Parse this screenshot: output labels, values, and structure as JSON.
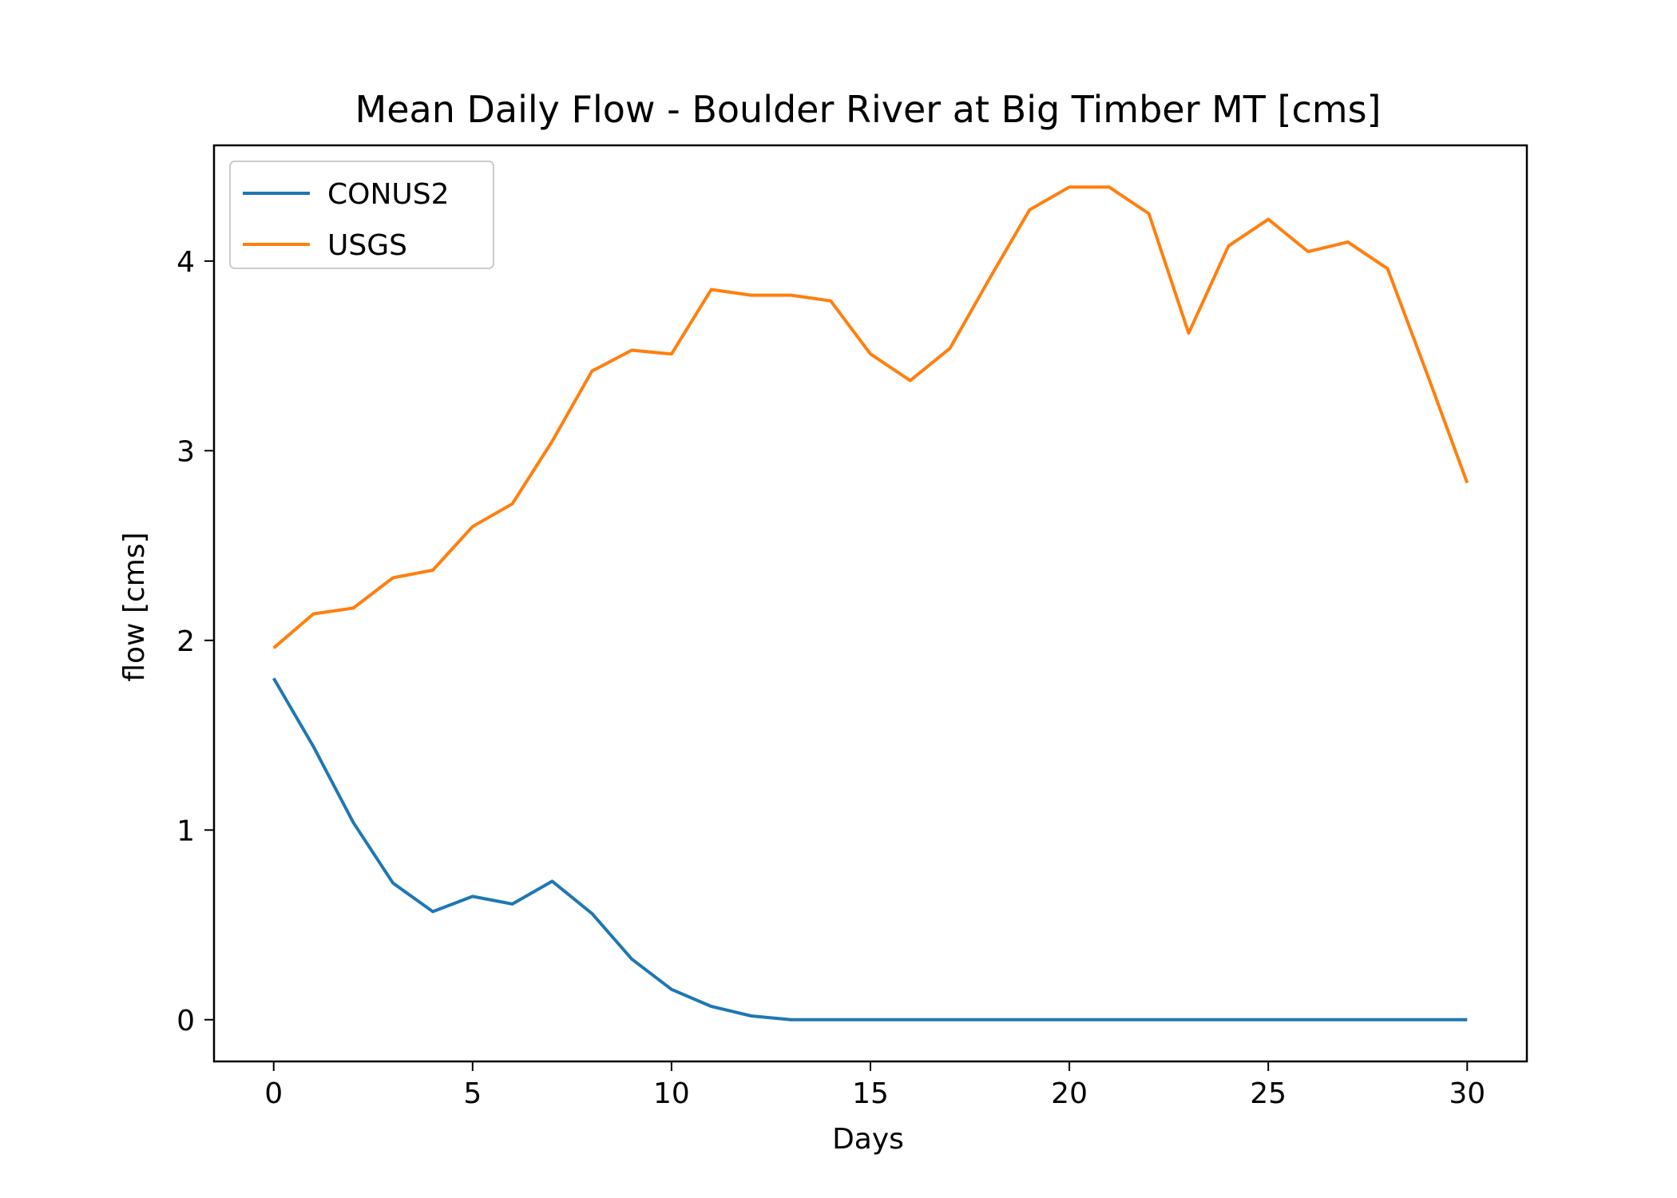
{
  "chart_data": {
    "type": "line",
    "title": "Mean Daily Flow - Boulder River at Big Timber MT [cms]",
    "xlabel": "Days",
    "ylabel": "flow [cms]",
    "xlim": [
      -1.5,
      31.5
    ],
    "ylim": [
      -0.22,
      4.61
    ],
    "xticks": [
      0,
      5,
      10,
      15,
      20,
      25,
      30
    ],
    "yticks": [
      0,
      1,
      2,
      3,
      4
    ],
    "grid": false,
    "legend_position": "upper-left",
    "x": [
      0,
      1,
      2,
      3,
      4,
      5,
      6,
      7,
      8,
      9,
      10,
      11,
      12,
      13,
      14,
      15,
      16,
      17,
      18,
      19,
      20,
      21,
      22,
      23,
      24,
      25,
      26,
      27,
      28,
      29,
      30
    ],
    "series": [
      {
        "name": "CONUS2",
        "color": "#1f77b4",
        "values": [
          1.8,
          1.44,
          1.04,
          0.72,
          0.57,
          0.65,
          0.61,
          0.73,
          0.56,
          0.32,
          0.16,
          0.07,
          0.02,
          0.0,
          0.0,
          0.0,
          0.0,
          0.0,
          0.0,
          0.0,
          0.0,
          0.0,
          0.0,
          0.0,
          0.0,
          0.0,
          0.0,
          0.0,
          0.0,
          0.0,
          0.0
        ]
      },
      {
        "name": "USGS",
        "color": "#ff7f0e",
        "values": [
          1.96,
          2.14,
          2.17,
          2.33,
          2.37,
          2.6,
          2.72,
          3.05,
          3.42,
          3.53,
          3.51,
          3.85,
          3.82,
          3.82,
          3.79,
          3.51,
          3.37,
          3.54,
          3.91,
          4.27,
          4.39,
          4.39,
          4.25,
          3.62,
          4.08,
          4.22,
          4.05,
          4.1,
          3.96,
          3.4,
          2.83
        ]
      }
    ]
  }
}
